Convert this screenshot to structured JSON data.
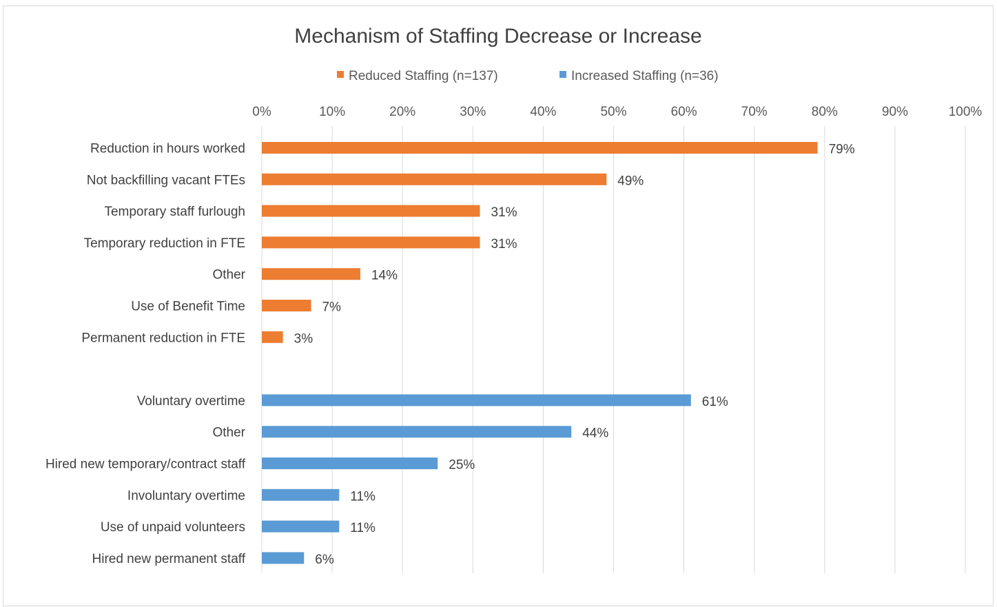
{
  "chart_data": {
    "type": "bar",
    "orientation": "horizontal",
    "title": "Mechanism of Staffing Decrease or Increase",
    "legend_position": "top",
    "grid": true,
    "xlim": [
      0,
      100
    ],
    "x_ticks": [
      "0%",
      "10%",
      "20%",
      "30%",
      "40%",
      "50%",
      "60%",
      "70%",
      "80%",
      "90%",
      "100%"
    ],
    "series": [
      {
        "name": "Reduced Staffing (n=137)",
        "color": "#ED7D31",
        "categories": [
          "Reduction in hours worked",
          "Not backfilling vacant FTEs",
          "Temporary staff furlough",
          "Temporary reduction in FTE",
          "Other",
          "Use of Benefit Time",
          "Permanent reduction in FTE"
        ],
        "values": [
          79,
          49,
          31,
          31,
          14,
          7,
          3
        ],
        "labels": [
          "79%",
          "49%",
          "31%",
          "31%",
          "14%",
          "7%",
          "3%"
        ]
      },
      {
        "name": "Increased Staffing (n=36)",
        "color": "#5B9BD5",
        "categories": [
          "Voluntary overtime",
          "Other",
          "Hired new temporary/contract staff",
          "Involuntary overtime",
          "Use of unpaid volunteers",
          "Hired new permanent staff"
        ],
        "values": [
          61,
          44,
          25,
          11,
          11,
          6
        ],
        "labels": [
          "61%",
          "44%",
          "25%",
          "11%",
          "11%",
          "6%"
        ]
      }
    ]
  }
}
